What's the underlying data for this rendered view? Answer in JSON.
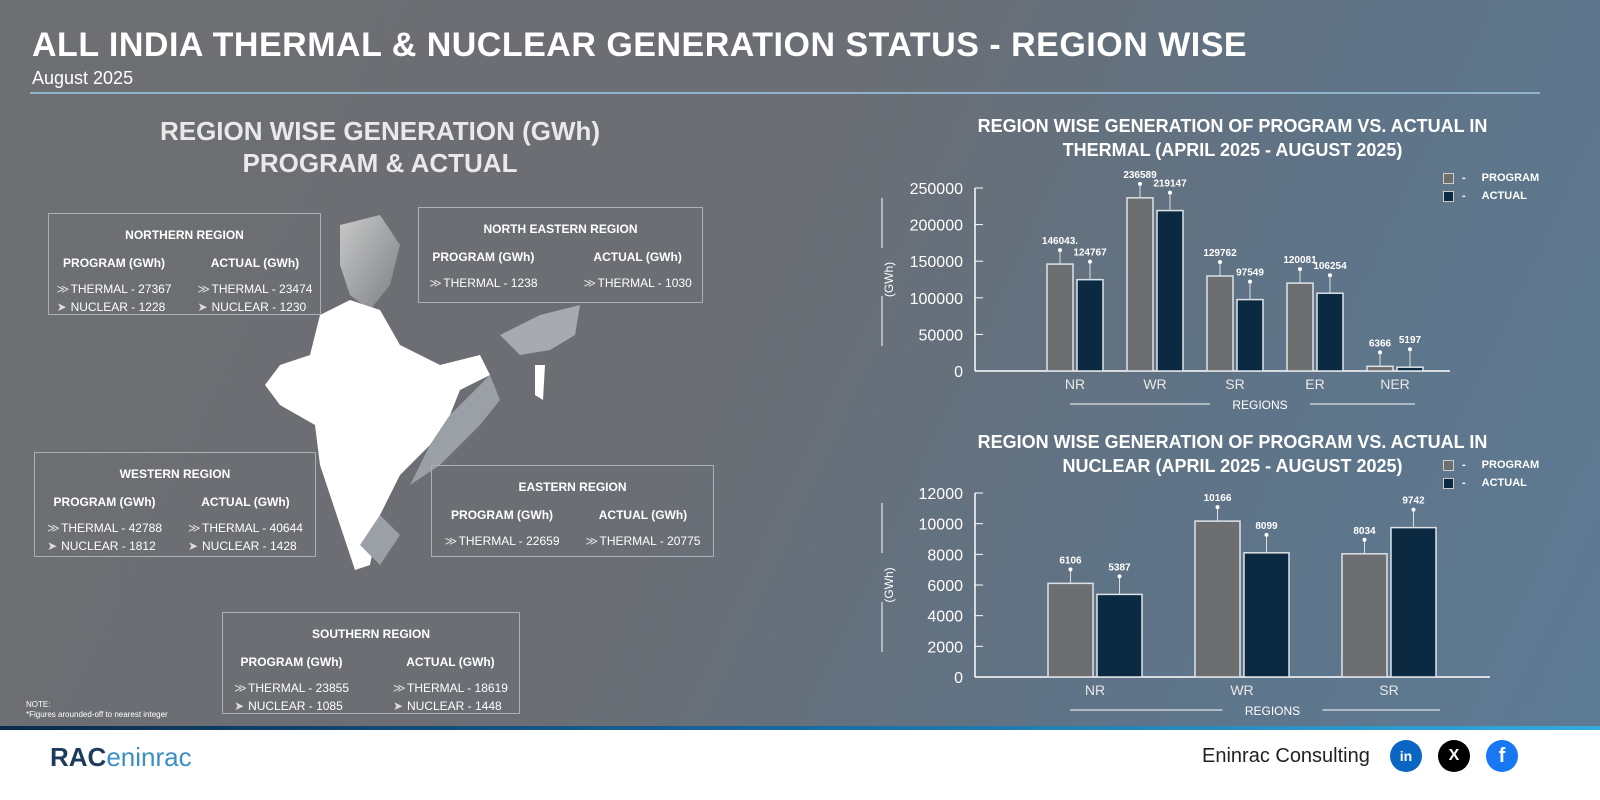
{
  "header": {
    "title": "ALL INDIA THERMAL & NUCLEAR GENERATION STATUS - REGION WISE",
    "subtitle": "August 2025"
  },
  "left": {
    "heading1": "REGION WISE GENERATION (GWh)",
    "heading2": "PROGRAM & ACTUAL",
    "program_label": "PROGRAM (GWh)",
    "actual_label": "ACTUAL (GWh)",
    "regions": {
      "northern": {
        "name": "NORTHERN REGION",
        "p_thermal": "THERMAL - 27367",
        "p_nuclear": "NUCLEAR - 1228",
        "a_thermal": "THERMAL - 23474",
        "a_nuclear": "NUCLEAR - 1230"
      },
      "northeastern": {
        "name": "NORTH EASTERN REGION",
        "p_thermal": "THERMAL - 1238",
        "a_thermal": "THERMAL - 1030"
      },
      "western": {
        "name": "WESTERN REGION",
        "p_thermal": "THERMAL - 42788",
        "p_nuclear": "NUCLEAR - 1812",
        "a_thermal": "THERMAL - 40644",
        "a_nuclear": "NUCLEAR - 1428"
      },
      "eastern": {
        "name": "EASTERN REGION",
        "p_thermal": "THERMAL - 22659",
        "a_thermal": "THERMAL - 20775"
      },
      "southern": {
        "name": "SOUTHERN REGION",
        "p_thermal": "THERMAL - 23855",
        "p_nuclear": "NUCLEAR - 1085",
        "a_thermal": "THERMAL - 18619",
        "a_nuclear": "NUCLEAR - 1448"
      }
    }
  },
  "note": {
    "label": "NOTE:",
    "text": "*Figures arounded-off to nearest integer"
  },
  "footer": {
    "logo": "RAC",
    "logo2": "eninrac",
    "company": "Eninrac Consulting",
    "social": [
      "in",
      "X",
      "f"
    ]
  },
  "colors": {
    "program": "#6d6e70",
    "actual": "#0b2a42"
  },
  "chart_data": [
    {
      "type": "bar",
      "title": "REGION WISE GENERATION OF PROGRAM VS. ACTUAL IN THERMAL (APRIL 2025 - AUGUST 2025)",
      "title1": "REGION WISE GENERATION OF PROGRAM VS. ACTUAL IN",
      "title2": "THERMAL (APRIL 2025 - AUGUST 2025)",
      "xlabel": "REGIONS",
      "ylabel": "(GWh)",
      "ylim": [
        0,
        250000
      ],
      "yticks": [
        0,
        50000,
        100000,
        150000,
        200000,
        250000
      ],
      "categories": [
        "NR",
        "WR",
        "SR",
        "ER",
        "NER"
      ],
      "series": [
        {
          "name": "PROGRAM",
          "values": [
            146043,
            236589,
            129762,
            120081,
            6366
          ],
          "labels": [
            "146043.",
            "236589",
            "129762",
            "120081",
            "6366"
          ]
        },
        {
          "name": "ACTUAL",
          "values": [
            124767,
            219147,
            97549,
            106254,
            5197
          ],
          "labels": [
            "124767",
            "219147",
            "97549",
            "106254",
            "5197"
          ]
        }
      ],
      "legend": "top-right"
    },
    {
      "type": "bar",
      "title": "REGION WISE GENERATION OF PROGRAM VS. ACTUAL IN NUCLEAR (APRIL 2025 - AUGUST 2025)",
      "title1": "REGION WISE GENERATION OF PROGRAM VS. ACTUAL IN",
      "title2": "NUCLEAR (APRIL 2025 - AUGUST 2025)",
      "xlabel": "REGIONS",
      "ylabel": "(GWh)",
      "ylim": [
        0,
        12000
      ],
      "yticks": [
        0,
        2000,
        4000,
        6000,
        8000,
        10000,
        12000
      ],
      "categories": [
        "NR",
        "WR",
        "SR"
      ],
      "series": [
        {
          "name": "PROGRAM",
          "values": [
            6106,
            10166,
            8034
          ],
          "labels": [
            "6106",
            "10166",
            "8034"
          ]
        },
        {
          "name": "ACTUAL",
          "values": [
            5387,
            8099,
            9742
          ],
          "labels": [
            "5387",
            "8099",
            "9742"
          ]
        }
      ],
      "legend": "top-right"
    }
  ]
}
